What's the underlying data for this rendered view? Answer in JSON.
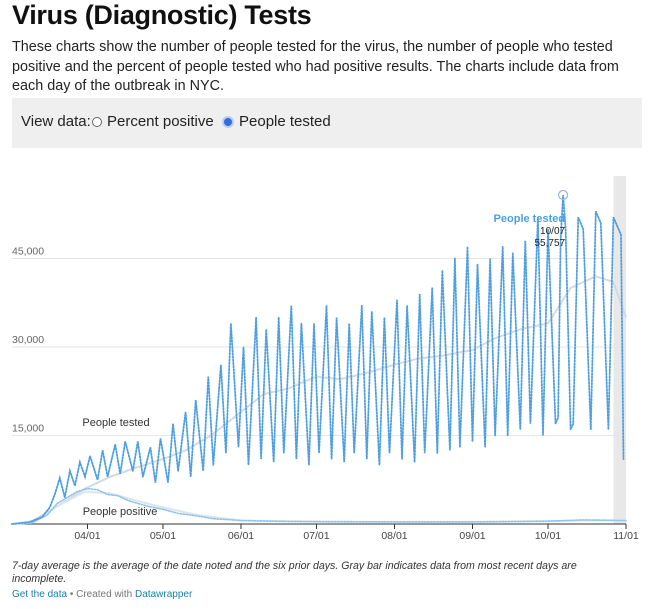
{
  "header": {
    "title": "Virus (Diagnostic) Tests",
    "description": "These charts show the number of people tested for the virus, the number of people who tested positive and the percent of people tested who had positive results. The charts include data from each day of the outbreak in NYC."
  },
  "controls": {
    "label": "View data:",
    "options": [
      {
        "label": "Percent positive",
        "selected": false
      },
      {
        "label": "People tested",
        "selected": true
      }
    ]
  },
  "chart_data": {
    "type": "line",
    "x_range": [
      "2020-03-02",
      "2020-11-01"
    ],
    "ylim": [
      0,
      60000
    ],
    "y_ticks": [
      15000,
      30000,
      45000
    ],
    "y_tick_labels": [
      "15,000",
      "30,000",
      "45,000"
    ],
    "x_ticks": [
      "2020-04-01",
      "2020-05-01",
      "2020-06-01",
      "2020-07-01",
      "2020-08-01",
      "2020-09-01",
      "2020-10-01",
      "2020-11-01"
    ],
    "x_tick_labels": [
      "04/01",
      "05/01",
      "06/01",
      "07/01",
      "08/01",
      "09/01",
      "10/01",
      "11/01"
    ],
    "incomplete_range": [
      "2020-10-27",
      "2020-11-01"
    ],
    "colors": {
      "tested": "#4f9fe0",
      "tested_avg": "#d2dbe5",
      "positive": "#8fc4ea",
      "positive_avg": "#dbe6ef",
      "gray_bar": "#e8e8e8"
    },
    "series": [
      {
        "name": "People tested",
        "style": "dotted",
        "x": [
          "2020-03-02",
          "2020-03-09",
          "2020-03-14",
          "2020-03-17",
          "2020-03-19",
          "2020-03-21",
          "2020-03-23",
          "2020-03-25",
          "2020-03-27",
          "2020-03-29",
          "2020-03-31",
          "2020-04-02",
          "2020-04-05",
          "2020-04-07",
          "2020-04-09",
          "2020-04-12",
          "2020-04-14",
          "2020-04-16",
          "2020-04-19",
          "2020-04-21",
          "2020-04-23",
          "2020-04-26",
          "2020-04-28",
          "2020-04-30",
          "2020-05-03",
          "2020-05-05",
          "2020-05-07",
          "2020-05-10",
          "2020-05-12",
          "2020-05-14",
          "2020-05-17",
          "2020-05-19",
          "2020-05-21",
          "2020-05-24",
          "2020-05-26",
          "2020-05-28",
          "2020-05-31",
          "2020-06-02",
          "2020-06-04",
          "2020-06-07",
          "2020-06-09",
          "2020-06-11",
          "2020-06-14",
          "2020-06-16",
          "2020-06-18",
          "2020-06-21",
          "2020-06-23",
          "2020-06-25",
          "2020-06-28",
          "2020-06-30",
          "2020-07-02",
          "2020-07-05",
          "2020-07-07",
          "2020-07-09",
          "2020-07-12",
          "2020-07-14",
          "2020-07-16",
          "2020-07-19",
          "2020-07-21",
          "2020-07-23",
          "2020-07-26",
          "2020-07-28",
          "2020-07-30",
          "2020-08-02",
          "2020-08-04",
          "2020-08-06",
          "2020-08-09",
          "2020-08-11",
          "2020-08-13",
          "2020-08-16",
          "2020-08-18",
          "2020-08-20",
          "2020-08-23",
          "2020-08-25",
          "2020-08-27",
          "2020-08-30",
          "2020-09-01",
          "2020-09-03",
          "2020-09-06",
          "2020-09-08",
          "2020-09-10",
          "2020-09-13",
          "2020-09-15",
          "2020-09-17",
          "2020-09-20",
          "2020-09-22",
          "2020-09-24",
          "2020-09-27",
          "2020-09-29",
          "2020-10-01",
          "2020-10-04",
          "2020-10-05",
          "2020-10-06",
          "2020-10-07",
          "2020-10-08",
          "2020-10-10",
          "2020-10-11",
          "2020-10-13",
          "2020-10-15",
          "2020-10-18",
          "2020-10-20",
          "2020-10-22",
          "2020-10-25",
          "2020-10-27",
          "2020-10-29",
          "2020-10-30",
          "2020-10-31"
        ],
        "y": [
          0,
          300,
          1200,
          2800,
          5000,
          7800,
          4500,
          9000,
          6500,
          10500,
          8000,
          11500,
          7500,
          12500,
          8000,
          13500,
          8500,
          14000,
          9000,
          14000,
          8000,
          13000,
          7000,
          14500,
          7000,
          17000,
          9000,
          19000,
          8000,
          21000,
          9000,
          25000,
          10000,
          27000,
          12000,
          34000,
          13000,
          30000,
          10000,
          35000,
          11000,
          33000,
          10500,
          35000,
          12000,
          37000,
          11000,
          34000,
          10000,
          34000,
          12000,
          37000,
          11000,
          35000,
          10500,
          34000,
          12000,
          37000,
          11000,
          36000,
          10000,
          35000,
          12000,
          38000,
          11000,
          37000,
          10500,
          39000,
          12000,
          40000,
          12000,
          43000,
          12500,
          45000,
          13000,
          47000,
          14000,
          44000,
          13000,
          45000,
          15000,
          47000,
          15000,
          46000,
          16000,
          48000,
          17000,
          52000,
          15000,
          50000,
          17000,
          18000,
          48000,
          55757,
          50000,
          16000,
          17000,
          52000,
          50000,
          16000,
          53000,
          51000,
          16000,
          52000,
          50000,
          49000,
          11000
        ]
      },
      {
        "name": "",
        "style": "solid",
        "x": [
          "2020-03-02",
          "2020-03-10",
          "2020-03-20",
          "2020-03-31",
          "2020-04-10",
          "2020-04-20",
          "2020-05-01",
          "2020-05-10",
          "2020-05-20",
          "2020-06-01",
          "2020-06-10",
          "2020-06-20",
          "2020-07-01",
          "2020-07-10",
          "2020-07-20",
          "2020-08-01",
          "2020-08-10",
          "2020-08-20",
          "2020-09-01",
          "2020-09-10",
          "2020-09-20",
          "2020-10-01",
          "2020-10-10",
          "2020-10-20",
          "2020-10-27",
          "2020-11-01"
        ],
        "y": [
          0,
          500,
          3000,
          6000,
          8000,
          9500,
          11000,
          12500,
          15000,
          19000,
          22000,
          23000,
          25000,
          24500,
          25500,
          27000,
          28000,
          28500,
          29500,
          31500,
          33000,
          34000,
          40000,
          42000,
          41000,
          35000
        ]
      },
      {
        "name": "People positive",
        "style": "dotted",
        "x": [
          "2020-03-02",
          "2020-03-10",
          "2020-03-16",
          "2020-03-20",
          "2020-03-24",
          "2020-03-28",
          "2020-04-01",
          "2020-04-05",
          "2020-04-09",
          "2020-04-13",
          "2020-04-17",
          "2020-04-21",
          "2020-04-25",
          "2020-05-01",
          "2020-05-07",
          "2020-05-14",
          "2020-05-21",
          "2020-06-01",
          "2020-06-15",
          "2020-07-01",
          "2020-08-01",
          "2020-09-01",
          "2020-10-01",
          "2020-10-15",
          "2020-11-01"
        ],
        "y": [
          0,
          200,
          1500,
          3500,
          4500,
          5500,
          6000,
          5800,
          5000,
          4800,
          4000,
          3500,
          3000,
          2500,
          1800,
          1400,
          900,
          600,
          450,
          400,
          350,
          350,
          500,
          700,
          600
        ]
      },
      {
        "name": "",
        "style": "solid",
        "x": [
          "2020-03-02",
          "2020-03-10",
          "2020-03-20",
          "2020-03-31",
          "2020-04-10",
          "2020-04-20",
          "2020-05-01",
          "2020-05-15",
          "2020-06-01",
          "2020-07-01",
          "2020-08-01",
          "2020-09-01",
          "2020-10-01",
          "2020-10-20",
          "2020-11-01"
        ],
        "y": [
          0,
          200,
          3000,
          5500,
          5200,
          4000,
          2800,
          1500,
          600,
          400,
          350,
          350,
          450,
          650,
          600
        ]
      }
    ],
    "annotations": [
      {
        "text": "People tested",
        "x": "2020-04-26",
        "y": 17500
      },
      {
        "text": "People positive",
        "x": "2020-04-15",
        "y": 2000
      },
      {
        "highlight": {
          "title": "People tested",
          "date": "10/07",
          "value": "55,757",
          "x": "2020-10-07",
          "y": 55757
        }
      }
    ]
  },
  "footer": {
    "note": "7-day average is the average of the date noted and the six prior days. Gray bar indicates data from most recent days are incomplete.",
    "get_data": "Get the data",
    "separator": " • Created with ",
    "datawrapper": "Datawrapper"
  }
}
